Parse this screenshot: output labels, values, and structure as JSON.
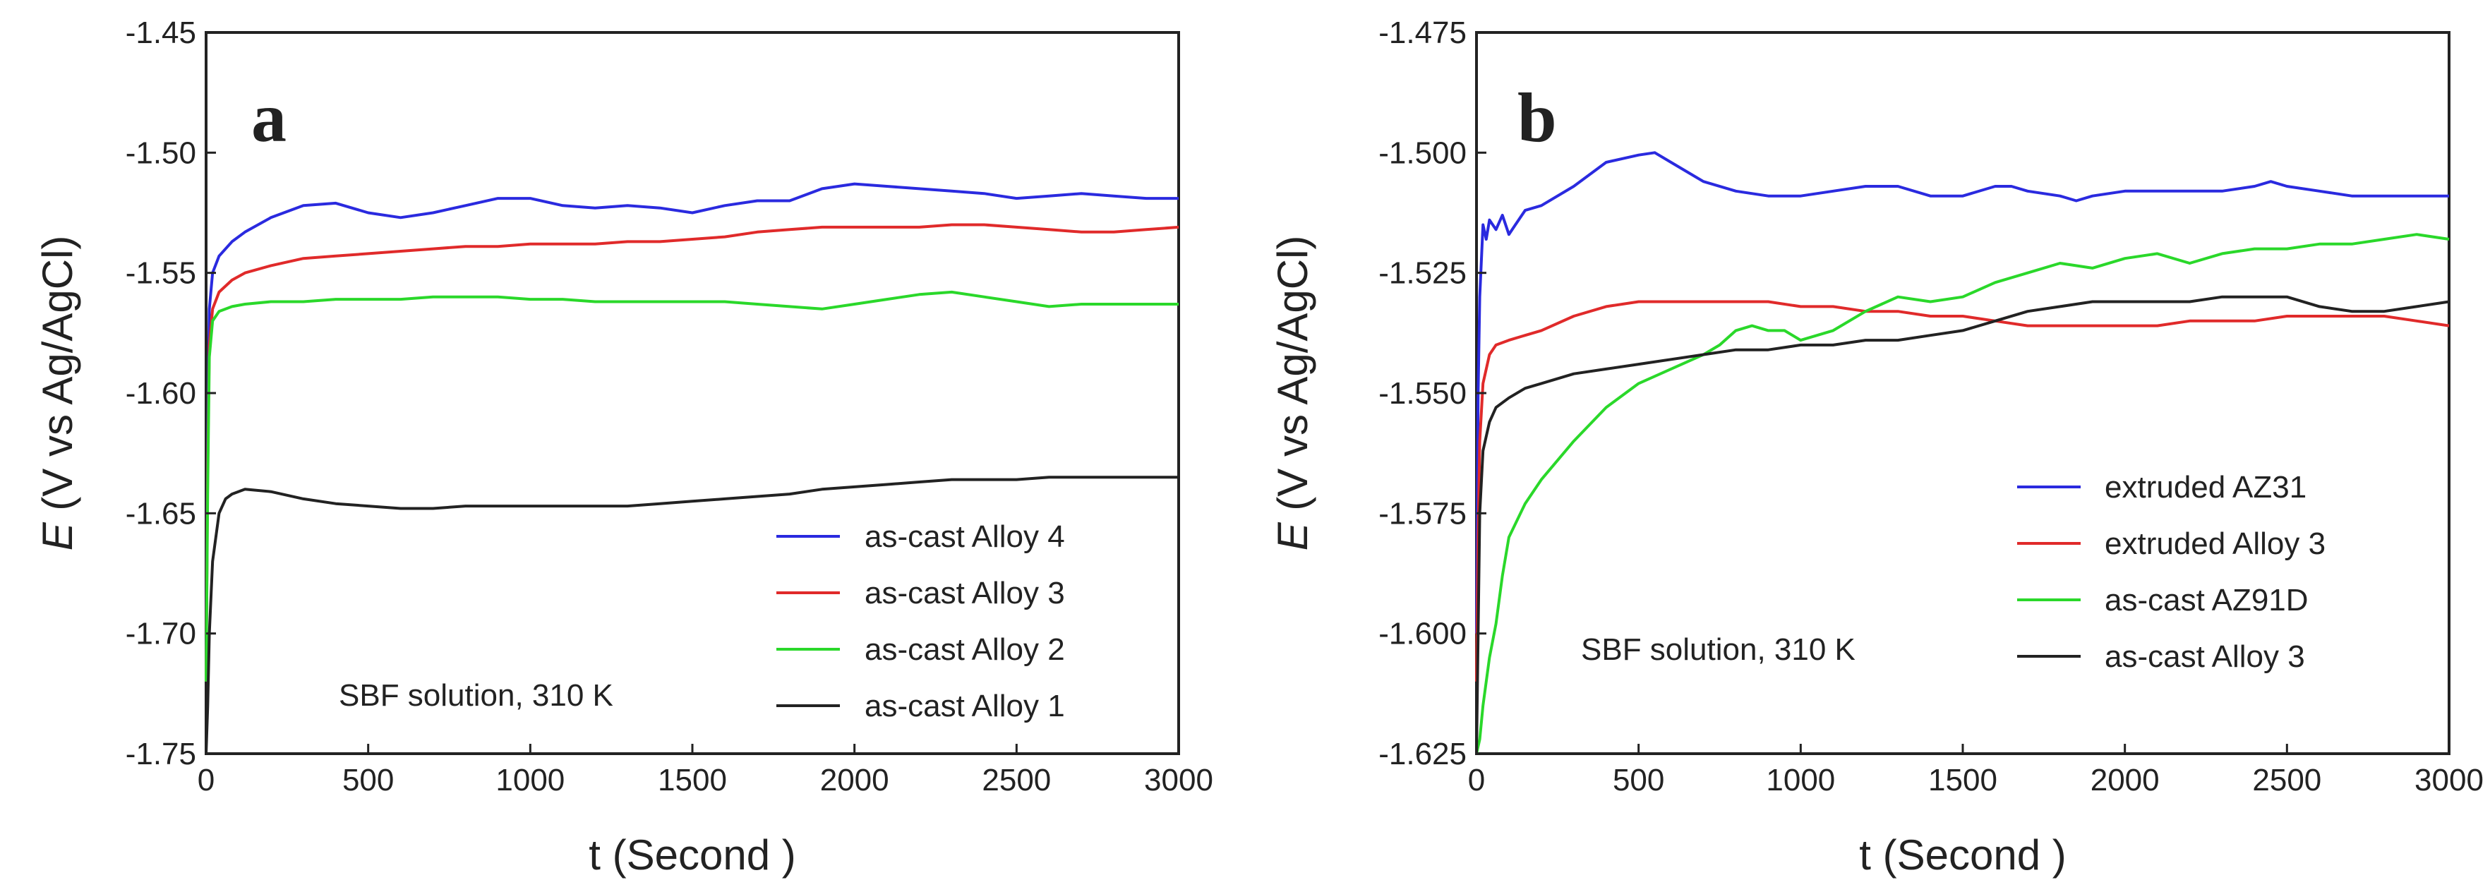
{
  "chart_data": [
    {
      "type": "line",
      "panel_label": "a",
      "xlabel": "t (Second )",
      "ylabel_symbol": "E",
      "ylabel_rest": "(V vs Ag/AgCl)",
      "xlim": [
        0,
        3000
      ],
      "ylim": [
        -1.75,
        -1.45
      ],
      "xticks": [
        "0",
        "500",
        "1000",
        "1500",
        "2000",
        "2500",
        "3000"
      ],
      "yticks": [
        "-1.75",
        "-1.70",
        "-1.65",
        "-1.60",
        "-1.55",
        "-1.50",
        "-1.45"
      ],
      "annotation": "SBF solution, 310 K",
      "legend_position": "bottom-right",
      "series": [
        {
          "name": "as-cast Alloy 4",
          "color": "#2a2adf",
          "x": [
            0,
            5,
            10,
            20,
            40,
            80,
            120,
            200,
            300,
            400,
            500,
            600,
            700,
            800,
            900,
            1000,
            1100,
            1200,
            1300,
            1400,
            1500,
            1600,
            1700,
            1800,
            1900,
            2000,
            2100,
            2200,
            2300,
            2400,
            2500,
            2600,
            2700,
            2800,
            2900,
            3000
          ],
          "y": [
            -1.72,
            -1.62,
            -1.565,
            -1.55,
            -1.543,
            -1.537,
            -1.533,
            -1.527,
            -1.522,
            -1.521,
            -1.525,
            -1.527,
            -1.525,
            -1.522,
            -1.519,
            -1.519,
            -1.522,
            -1.523,
            -1.522,
            -1.523,
            -1.525,
            -1.522,
            -1.52,
            -1.52,
            -1.515,
            -1.513,
            -1.514,
            -1.515,
            -1.516,
            -1.517,
            -1.519,
            -1.518,
            -1.517,
            -1.518,
            -1.519,
            -1.519
          ]
        },
        {
          "name": "as-cast Alloy 3",
          "color": "#e02a2a",
          "x": [
            0,
            5,
            10,
            20,
            40,
            80,
            120,
            200,
            300,
            400,
            500,
            600,
            700,
            800,
            900,
            1000,
            1100,
            1200,
            1300,
            1400,
            1500,
            1600,
            1700,
            1800,
            1900,
            2000,
            2100,
            2200,
            2300,
            2400,
            2500,
            2600,
            2700,
            2800,
            2900,
            3000
          ],
          "y": [
            -1.72,
            -1.63,
            -1.58,
            -1.565,
            -1.558,
            -1.553,
            -1.55,
            -1.547,
            -1.544,
            -1.543,
            -1.542,
            -1.541,
            -1.54,
            -1.539,
            -1.539,
            -1.538,
            -1.538,
            -1.538,
            -1.537,
            -1.537,
            -1.536,
            -1.535,
            -1.533,
            -1.532,
            -1.531,
            -1.531,
            -1.531,
            -1.531,
            -1.53,
            -1.53,
            -1.531,
            -1.532,
            -1.533,
            -1.533,
            -1.532,
            -1.531
          ]
        },
        {
          "name": "as-cast Alloy 2",
          "color": "#2ad82a",
          "x": [
            0,
            5,
            10,
            20,
            40,
            80,
            120,
            200,
            300,
            400,
            500,
            600,
            700,
            800,
            900,
            1000,
            1100,
            1200,
            1300,
            1400,
            1500,
            1600,
            1700,
            1800,
            1900,
            2000,
            2100,
            2200,
            2300,
            2400,
            2500,
            2600,
            2700,
            2800,
            2900,
            3000
          ],
          "y": [
            -1.72,
            -1.64,
            -1.585,
            -1.57,
            -1.566,
            -1.564,
            -1.563,
            -1.562,
            -1.562,
            -1.561,
            -1.561,
            -1.561,
            -1.56,
            -1.56,
            -1.56,
            -1.561,
            -1.561,
            -1.562,
            -1.562,
            -1.562,
            -1.562,
            -1.562,
            -1.563,
            -1.564,
            -1.565,
            -1.563,
            -1.561,
            -1.559,
            -1.558,
            -1.56,
            -1.562,
            -1.564,
            -1.563,
            -1.563,
            -1.563,
            -1.563
          ]
        },
        {
          "name": "as-cast Alloy 1",
          "color": "#222222",
          "x": [
            0,
            5,
            10,
            20,
            40,
            60,
            80,
            120,
            200,
            300,
            400,
            500,
            600,
            700,
            800,
            900,
            1000,
            1100,
            1200,
            1300,
            1400,
            1500,
            1600,
            1700,
            1800,
            1900,
            2000,
            2100,
            2200,
            2300,
            2400,
            2500,
            2600,
            2700,
            2800,
            2900,
            3000
          ],
          "y": [
            -1.75,
            -1.73,
            -1.7,
            -1.67,
            -1.65,
            -1.644,
            -1.642,
            -1.64,
            -1.641,
            -1.644,
            -1.646,
            -1.647,
            -1.648,
            -1.648,
            -1.647,
            -1.647,
            -1.647,
            -1.647,
            -1.647,
            -1.647,
            -1.646,
            -1.645,
            -1.644,
            -1.643,
            -1.642,
            -1.64,
            -1.639,
            -1.638,
            -1.637,
            -1.636,
            -1.636,
            -1.636,
            -1.635,
            -1.635,
            -1.635,
            -1.635,
            -1.635
          ]
        }
      ]
    },
    {
      "type": "line",
      "panel_label": "b",
      "xlabel": "t (Second )",
      "ylabel_symbol": "E",
      "ylabel_rest": "(V vs Ag/AgCl)",
      "xlim": [
        0,
        3000
      ],
      "ylim": [
        -1.625,
        -1.475
      ],
      "xticks": [
        "0",
        "500",
        "1000",
        "1500",
        "2000",
        "2500",
        "3000"
      ],
      "yticks": [
        "-1.625",
        "-1.600",
        "-1.575",
        "-1.550",
        "-1.525",
        "-1.500",
        "-1.475"
      ],
      "annotation": "SBF solution, 310 K",
      "legend_position": "bottom-right",
      "series": [
        {
          "name": "extruded AZ31",
          "color": "#2a2adf",
          "x": [
            0,
            5,
            10,
            20,
            30,
            40,
            60,
            80,
            100,
            120,
            150,
            200,
            300,
            400,
            500,
            550,
            600,
            700,
            800,
            900,
            1000,
            1100,
            1200,
            1300,
            1400,
            1500,
            1600,
            1650,
            1700,
            1800,
            1850,
            1900,
            2000,
            2100,
            2200,
            2300,
            2400,
            2450,
            2500,
            2600,
            2700,
            2800,
            2900,
            3000
          ],
          "y": [
            -1.6,
            -1.55,
            -1.53,
            -1.515,
            -1.518,
            -1.514,
            -1.516,
            -1.513,
            -1.517,
            -1.515,
            -1.512,
            -1.511,
            -1.507,
            -1.502,
            -1.5005,
            -1.5,
            -1.502,
            -1.506,
            -1.508,
            -1.509,
            -1.509,
            -1.508,
            -1.507,
            -1.507,
            -1.509,
            -1.509,
            -1.507,
            -1.507,
            -1.508,
            -1.509,
            -1.51,
            -1.509,
            -1.508,
            -1.508,
            -1.508,
            -1.508,
            -1.507,
            -1.506,
            -1.507,
            -1.508,
            -1.509,
            -1.509,
            -1.509,
            -1.509
          ]
        },
        {
          "name": "extruded Alloy 3",
          "color": "#e02a2a",
          "x": [
            0,
            5,
            10,
            20,
            40,
            60,
            100,
            150,
            200,
            300,
            400,
            500,
            600,
            700,
            800,
            900,
            1000,
            1100,
            1200,
            1300,
            1400,
            1500,
            1600,
            1700,
            1800,
            1900,
            2000,
            2100,
            2200,
            2300,
            2400,
            2500,
            2600,
            2700,
            2800,
            2900,
            3000
          ],
          "y": [
            -1.61,
            -1.58,
            -1.56,
            -1.548,
            -1.542,
            -1.54,
            -1.539,
            -1.538,
            -1.537,
            -1.534,
            -1.532,
            -1.531,
            -1.531,
            -1.531,
            -1.531,
            -1.531,
            -1.532,
            -1.532,
            -1.533,
            -1.533,
            -1.534,
            -1.534,
            -1.535,
            -1.536,
            -1.536,
            -1.536,
            -1.536,
            -1.536,
            -1.535,
            -1.535,
            -1.535,
            -1.534,
            -1.534,
            -1.534,
            -1.534,
            -1.535,
            -1.536
          ]
        },
        {
          "name": "as-cast AZ91D",
          "color": "#2ad82a",
          "x": [
            0,
            10,
            20,
            40,
            60,
            80,
            100,
            150,
            200,
            300,
            400,
            500,
            600,
            700,
            750,
            800,
            850,
            900,
            950,
            1000,
            1100,
            1200,
            1300,
            1400,
            1500,
            1600,
            1700,
            1800,
            1900,
            2000,
            2100,
            2200,
            2300,
            2400,
            2500,
            2600,
            2700,
            2800,
            2900,
            3000
          ],
          "y": [
            -1.625,
            -1.622,
            -1.615,
            -1.605,
            -1.598,
            -1.588,
            -1.58,
            -1.573,
            -1.568,
            -1.56,
            -1.553,
            -1.548,
            -1.545,
            -1.542,
            -1.54,
            -1.537,
            -1.536,
            -1.537,
            -1.537,
            -1.539,
            -1.537,
            -1.533,
            -1.53,
            -1.531,
            -1.53,
            -1.527,
            -1.525,
            -1.523,
            -1.524,
            -1.522,
            -1.521,
            -1.523,
            -1.521,
            -1.52,
            -1.52,
            -1.519,
            -1.519,
            -1.518,
            -1.517,
            -1.518
          ]
        },
        {
          "name": "as-cast Alloy 3",
          "color": "#222222",
          "x": [
            0,
            5,
            10,
            20,
            40,
            60,
            100,
            150,
            200,
            300,
            400,
            500,
            600,
            700,
            800,
            900,
            1000,
            1100,
            1200,
            1300,
            1400,
            1500,
            1600,
            1700,
            1800,
            1900,
            2000,
            2100,
            2200,
            2300,
            2400,
            2500,
            2600,
            2700,
            2800,
            2900,
            3000
          ],
          "y": [
            -1.625,
            -1.6,
            -1.575,
            -1.562,
            -1.556,
            -1.553,
            -1.551,
            -1.549,
            -1.548,
            -1.546,
            -1.545,
            -1.544,
            -1.543,
            -1.542,
            -1.541,
            -1.541,
            -1.54,
            -1.54,
            -1.539,
            -1.539,
            -1.538,
            -1.537,
            -1.535,
            -1.533,
            -1.532,
            -1.531,
            -1.531,
            -1.531,
            -1.531,
            -1.53,
            -1.53,
            -1.53,
            -1.532,
            -1.533,
            -1.533,
            -1.532,
            -1.531
          ]
        }
      ]
    }
  ]
}
